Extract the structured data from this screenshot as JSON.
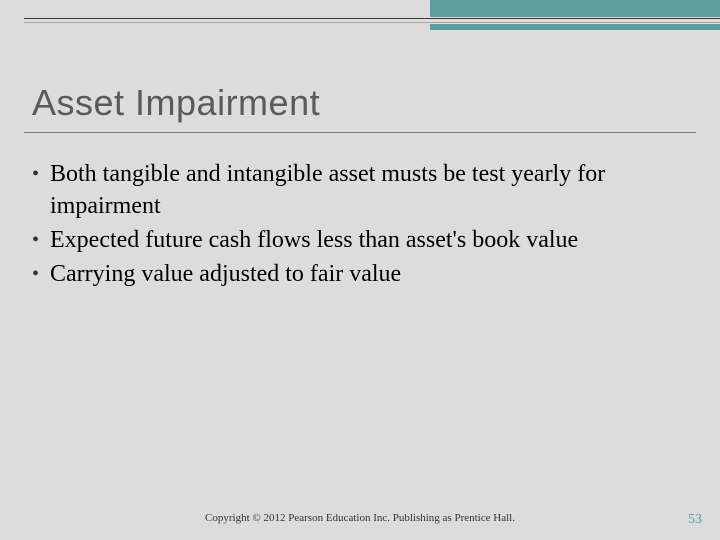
{
  "title": "Asset Impairment",
  "bullets": [
    "Both tangible and intangible asset musts be test yearly for impairment",
    "Expected future cash flows less than asset's book value",
    "Carrying value adjusted to fair value"
  ],
  "copyright": "Copyright © 2012 Pearson Education Inc. Publishing as Prentice Hall.",
  "page_number": "53",
  "colors": {
    "background": "#dcdcdc",
    "accent_teal": "#5f9ea0",
    "title_color": "#5a5a5a",
    "body_text": "#000000",
    "rule_color": "#7a7a7a"
  },
  "typography": {
    "title_font": "Trebuchet MS",
    "title_size_pt": 28,
    "body_font": "Georgia",
    "body_size_pt": 18,
    "footer_size_pt": 8
  }
}
